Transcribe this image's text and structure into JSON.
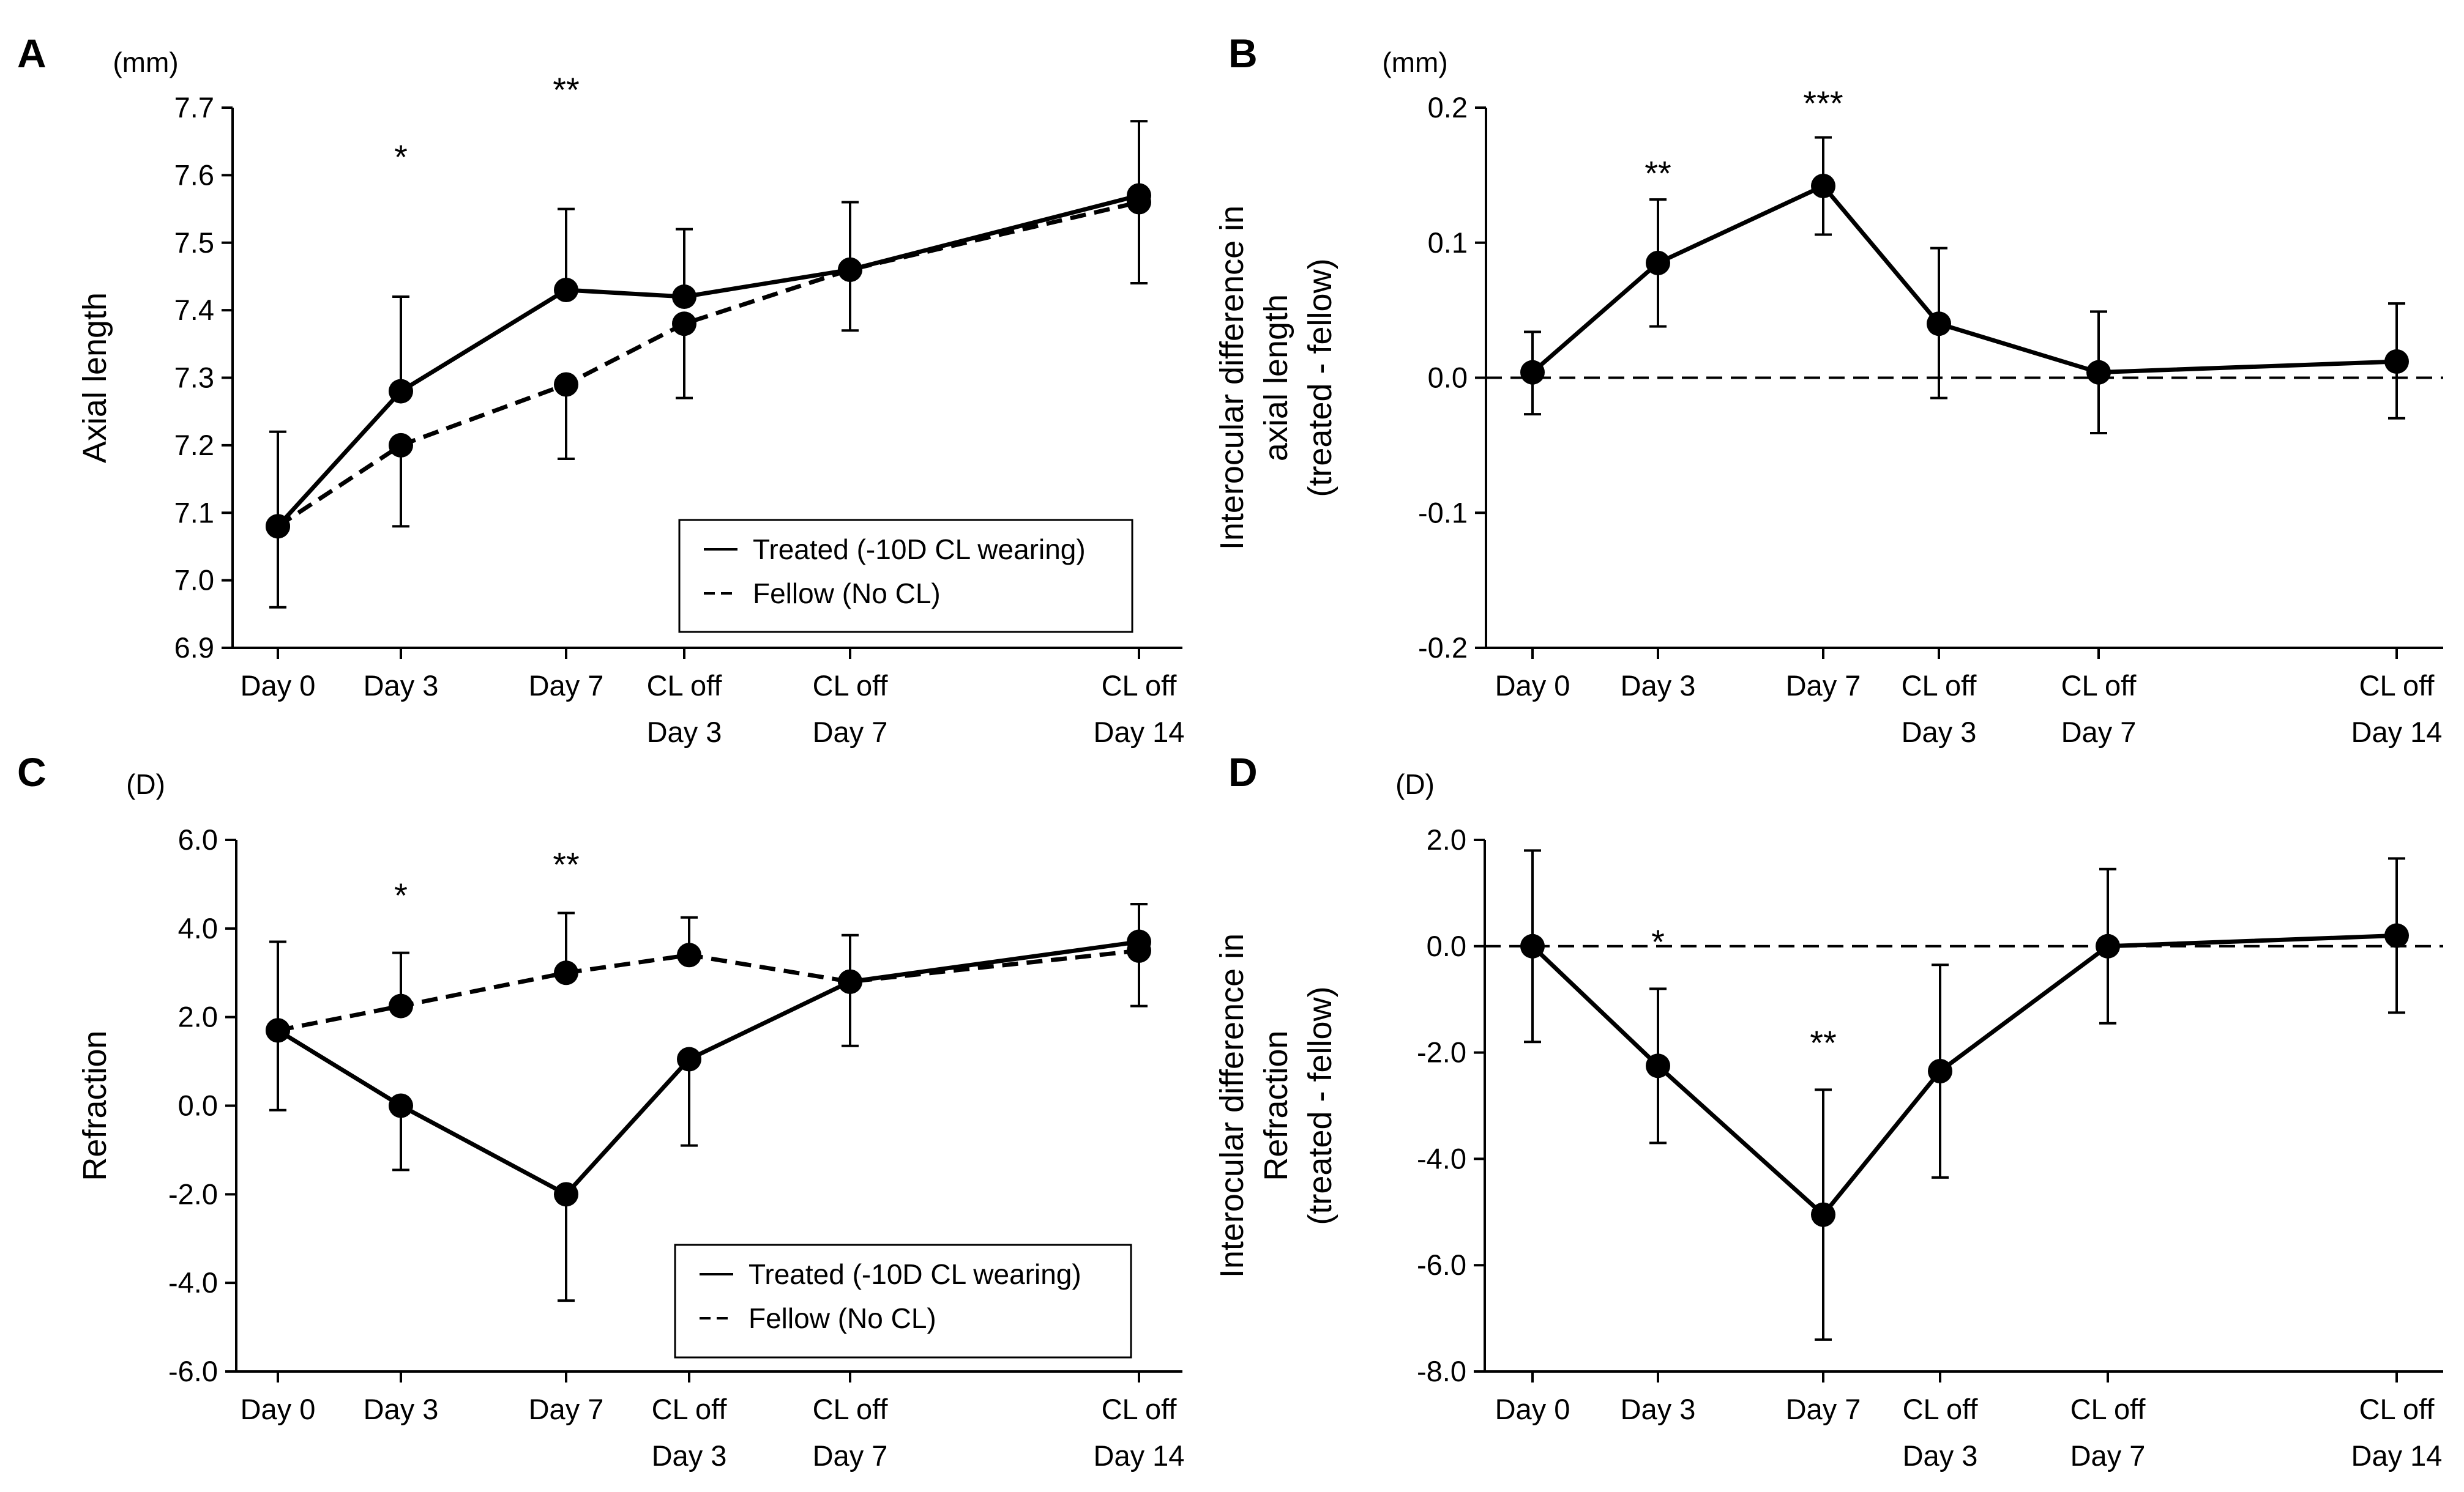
{
  "chart_data": [
    {
      "panel": "A",
      "type": "line",
      "unit": "(mm)",
      "ylabel": "Axial length",
      "ylim": [
        6.9,
        7.7
      ],
      "yticks": [
        "6.9",
        "7.0",
        "7.1",
        "7.2",
        "7.3",
        "7.4",
        "7.5",
        "7.6",
        "7.7"
      ],
      "x": [
        0,
        3,
        7,
        10,
        14,
        21
      ],
      "categories": [
        [
          "Day 0"
        ],
        [
          "Day 3"
        ],
        [
          "Day 7"
        ],
        [
          "CL off",
          "Day 3"
        ],
        [
          "CL off",
          "Day 7"
        ],
        [
          "CL off",
          "Day 14"
        ]
      ],
      "series": [
        {
          "name": "Treated (-10D CL wearing)",
          "dash": "solid",
          "values": [
            7.08,
            7.28,
            7.43,
            7.42,
            7.46,
            7.57
          ],
          "err_upper": [
            7.22,
            7.42,
            7.55,
            7.52,
            7.56,
            7.68
          ],
          "err_lower": [
            6.96,
            null,
            null,
            null,
            7.37,
            7.44
          ]
        },
        {
          "name": "Fellow (No CL)",
          "dash": "dashed",
          "values": [
            7.08,
            7.2,
            7.29,
            7.38,
            7.46,
            7.56
          ],
          "err_upper": [
            null,
            null,
            null,
            null,
            null,
            null
          ],
          "err_lower": [
            null,
            7.08,
            7.18,
            7.27,
            null,
            null
          ]
        }
      ],
      "annotations": [
        {
          "text": "*",
          "x": 3,
          "y": 7.64
        },
        {
          "text": "**",
          "x": 7,
          "y": 7.74
        }
      ],
      "legend": {
        "position": "bottom-right",
        "entries": [
          "Treated (-10D CL wearing)",
          "Fellow (No CL)"
        ]
      }
    },
    {
      "panel": "B",
      "type": "line",
      "unit": "(mm)",
      "ylabel": [
        "Interocular  difference in",
        "axial length",
        "(treated - fellow)"
      ],
      "ylim": [
        -0.2,
        0.2
      ],
      "yticks": [
        "-0.2",
        "-0.1",
        "0.0",
        "0.1",
        "0.2"
      ],
      "x": [
        0,
        3,
        7,
        10,
        14,
        21
      ],
      "categories": [
        [
          "Day 0"
        ],
        [
          "Day 3"
        ],
        [
          "Day 7"
        ],
        [
          "CL off",
          "Day 3"
        ],
        [
          "CL off",
          "Day 7"
        ],
        [
          "CL off",
          "Day 14"
        ]
      ],
      "baseline": 0,
      "series": [
        {
          "name": "Difference",
          "dash": "solid",
          "values": [
            0.004,
            0.085,
            0.142,
            0.04,
            0.004,
            0.012
          ],
          "err_upper": [
            0.034,
            0.132,
            0.178,
            0.096,
            0.049,
            0.055
          ],
          "err_lower": [
            -0.027,
            0.038,
            0.106,
            -0.015,
            -0.041,
            -0.03
          ]
        }
      ],
      "annotations": [
        {
          "text": "**",
          "x": 3,
          "y": 0.158
        },
        {
          "text": "***",
          "x": 7,
          "y": 0.21
        }
      ]
    },
    {
      "panel": "C",
      "type": "line",
      "unit": "(D)",
      "ylabel": "Refraction",
      "ylim": [
        -6.0,
        6.0
      ],
      "yticks": [
        "-6.0",
        "-4.0",
        "-2.0",
        "0.0",
        "2.0",
        "4.0",
        "6.0"
      ],
      "x": [
        0,
        3,
        7,
        10,
        14,
        21
      ],
      "categories": [
        [
          "Day 0"
        ],
        [
          "Day 3"
        ],
        [
          "Day 7"
        ],
        [
          "CL off",
          "Day 3"
        ],
        [
          "CL off",
          "Day 7"
        ],
        [
          "CL off",
          "Day 14"
        ]
      ],
      "series": [
        {
          "name": "Treated (-10D CL wearing)",
          "dash": "solid",
          "values": [
            1.7,
            0.0,
            -2.0,
            1.05,
            2.8,
            3.7
          ],
          "err_upper": [
            3.7,
            null,
            null,
            null,
            3.85,
            4.55
          ],
          "err_lower": [
            -0.1,
            -1.45,
            -4.4,
            -0.9,
            1.35,
            null
          ]
        },
        {
          "name": "Fellow (No CL)",
          "dash": "dashed",
          "values": [
            1.7,
            2.25,
            3.0,
            3.4,
            2.8,
            3.5
          ],
          "err_upper": [
            null,
            3.45,
            4.35,
            4.25,
            null,
            null
          ],
          "err_lower": [
            null,
            null,
            null,
            null,
            null,
            2.25
          ]
        }
      ],
      "annotations": [
        {
          "text": "*",
          "x": 3,
          "y": 4.95
        },
        {
          "text": "**",
          "x": 7,
          "y": 5.65
        }
      ],
      "legend": {
        "position": "bottom-right",
        "entries": [
          "Treated (-10D CL wearing)",
          "Fellow (No CL)"
        ]
      }
    },
    {
      "panel": "D",
      "type": "line",
      "unit": "(D)",
      "ylabel": [
        "Interocular  difference in",
        "Refraction",
        "(treated - fellow)"
      ],
      "ylim": [
        -8.0,
        2.0
      ],
      "yticks": [
        "-8.0",
        "-6.0",
        "-4.0",
        "-2.0",
        "0.0",
        "2.0"
      ],
      "x": [
        0,
        3,
        7,
        10,
        14,
        21
      ],
      "categories": [
        [
          "Day 0"
        ],
        [
          "Day 3"
        ],
        [
          "Day 7"
        ],
        [
          "CL off",
          "Day 3"
        ],
        [
          "CL off",
          "Day 7"
        ],
        [
          "CL off",
          "Day 14"
        ]
      ],
      "baseline": 0,
      "series": [
        {
          "name": "Difference",
          "dash": "solid",
          "values": [
            0.0,
            -2.25,
            -5.05,
            -2.35,
            0.0,
            0.2
          ],
          "err_upper": [
            1.8,
            -0.8,
            -2.7,
            -0.35,
            1.45,
            1.65
          ],
          "err_lower": [
            -1.8,
            -3.7,
            -7.4,
            -4.35,
            -1.45,
            -1.25
          ]
        }
      ],
      "annotations": [
        {
          "text": "*",
          "x": 3,
          "y": 0.25
        },
        {
          "text": "**",
          "x": 7,
          "y": -1.65
        }
      ]
    }
  ]
}
